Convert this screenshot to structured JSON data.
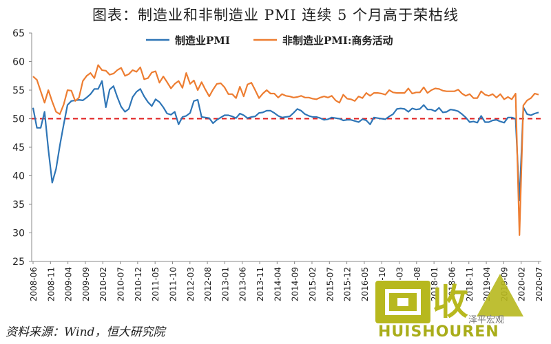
{
  "chart_data": {
    "type": "line",
    "title": "图表：制造业和非制造业 PMI 连续 5 个月高于荣枯线",
    "source": "资料来源：Wind，恒大研究院",
    "ylim": [
      25,
      65
    ],
    "yticks": [
      25,
      30,
      35,
      40,
      45,
      50,
      55,
      60,
      65
    ],
    "threshold": 50,
    "xticks": [
      "2008-06",
      "2008-11",
      "2009-04",
      "2009-09",
      "2010-02",
      "2010-07",
      "2010-12",
      "2011-05",
      "2011-10",
      "2012-03",
      "2012-08",
      "2013-01",
      "2013-06",
      "2013-11",
      "2014-04",
      "2014-09",
      "2015-02",
      "2015-07",
      "2015-12",
      "2016-05",
      "2016-10",
      "2017-03",
      "2017-08",
      "2018-01",
      "2018-06",
      "2018-11",
      "2019-04",
      "2019-09",
      "2020-02",
      "2020-07"
    ],
    "series": [
      {
        "name": "制造业PMI",
        "color": "#2e75b6",
        "values": [
          51.9,
          48.4,
          48.4,
          51.2,
          44.6,
          38.8,
          41.2,
          45.3,
          49.0,
          52.4,
          53.1,
          53.2,
          53.3,
          53.2,
          53.7,
          54.3,
          55.2,
          55.2,
          56.6,
          52.0,
          55.1,
          55.7,
          53.8,
          52.1,
          51.2,
          51.7,
          53.8,
          54.7,
          55.2,
          53.9,
          52.9,
          52.2,
          53.4,
          52.9,
          52.0,
          50.9,
          50.7,
          51.2,
          49.0,
          50.3,
          50.5,
          51.0,
          53.1,
          53.3,
          50.3,
          50.2,
          50.1,
          49.2,
          49.8,
          50.2,
          50.6,
          50.6,
          50.4,
          50.1,
          50.9,
          50.6,
          50.1,
          50.3,
          50.4,
          51.0,
          51.1,
          51.4,
          51.4,
          51.0,
          50.5,
          50.2,
          50.3,
          50.4,
          51.0,
          51.7,
          51.4,
          50.8,
          50.5,
          50.3,
          50.3,
          50.1,
          49.8,
          49.9,
          50.2,
          50.1,
          50.0,
          49.7,
          49.8,
          49.8,
          49.6,
          49.4,
          49.9,
          49.7,
          49.0,
          50.2,
          50.1,
          50.0,
          49.9,
          50.4,
          50.8,
          51.7,
          51.8,
          51.7,
          51.2,
          51.8,
          51.6,
          51.7,
          52.4,
          51.6,
          51.6,
          51.3,
          51.9,
          51.1,
          51.2,
          51.6,
          51.5,
          51.3,
          50.8,
          50.2,
          49.4,
          49.5,
          49.3,
          50.5,
          49.4,
          49.4,
          49.7,
          49.8,
          49.5,
          49.3,
          50.2,
          50.2,
          50.0,
          35.7,
          52.0,
          50.8,
          50.6,
          50.9,
          51.1
        ],
        "last_segment_offset": 0
      },
      {
        "name": "非制造业PMI:商务活动",
        "color": "#ed7d31",
        "values": [
          57.4,
          56.8,
          54.8,
          52.8,
          55.0,
          53.0,
          51.2,
          50.8,
          52.5,
          55.0,
          54.9,
          53.1,
          53.7,
          56.6,
          57.5,
          58.0,
          57.1,
          59.4,
          58.5,
          58.4,
          57.7,
          57.9,
          58.5,
          58.9,
          57.5,
          57.8,
          58.5,
          58.2,
          59.0,
          56.9,
          57.1,
          58.1,
          58.3,
          56.3,
          57.4,
          56.4,
          55.3,
          56.1,
          56.6,
          55.4,
          58.0,
          56.1,
          56.7,
          55.0,
          56.4,
          55.1,
          53.9,
          55.1,
          56.1,
          56.2,
          55.5,
          54.3,
          54.3,
          53.6,
          55.6,
          53.9,
          56.0,
          56.3,
          55.0,
          53.6,
          54.4,
          55.0,
          54.4,
          54.4,
          53.7,
          54.3,
          54.0,
          53.9,
          53.7,
          53.8,
          54.0,
          53.7,
          53.7,
          53.5,
          53.4,
          53.7,
          53.9,
          53.7,
          54.0,
          53.2,
          52.8,
          54.2,
          53.5,
          53.4,
          53.1,
          53.9,
          53.6,
          54.5,
          54.0,
          54.5,
          54.5,
          54.4,
          54.2,
          55.0,
          54.6,
          54.5,
          54.5,
          54.5,
          55.3,
          54.4,
          54.6,
          54.6,
          55.5,
          54.5,
          55.0,
          55.3,
          55.2,
          54.9,
          54.8,
          54.8,
          54.8,
          55.1,
          54.4,
          54.0,
          54.3,
          53.6,
          53.6,
          54.8,
          54.2,
          54.0,
          54.3,
          53.7,
          54.3,
          53.4,
          53.8,
          53.4,
          54.4,
          29.6,
          52.3,
          53.2,
          53.6,
          54.4,
          54.2
        ]
      }
    ]
  },
  "watermark": {
    "brand_text": "HUISHOUREN",
    "logo_glyphs": "收",
    "weibo_text": "泽平宏观"
  }
}
